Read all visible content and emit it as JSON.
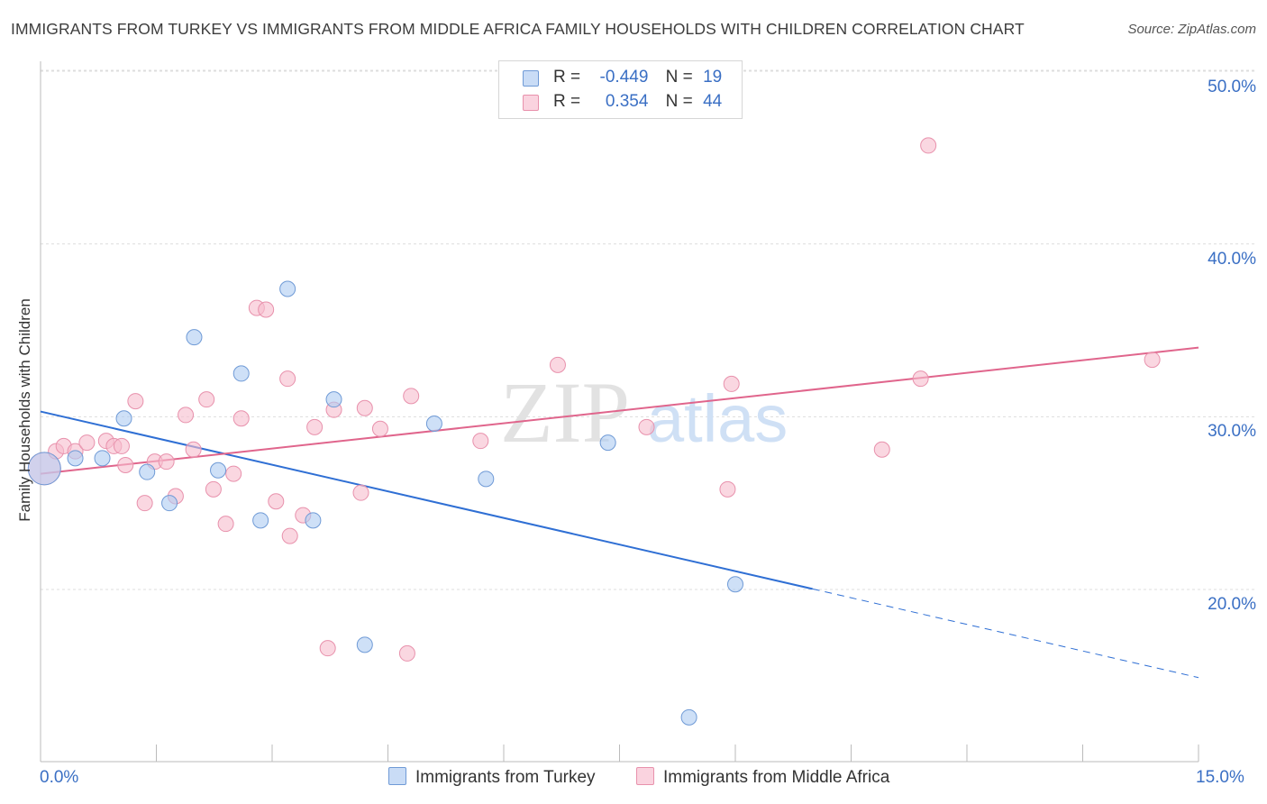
{
  "title": "IMMIGRANTS FROM TURKEY VS IMMIGRANTS FROM MIDDLE AFRICA FAMILY HOUSEHOLDS WITH CHILDREN CORRELATION CHART",
  "source": "Source: ZipAtlas.com",
  "watermark": {
    "zip": "ZIP",
    "atlas": "atlas"
  },
  "legend": {
    "rows": [
      {
        "r_label": "R =",
        "r_value": "-0.449",
        "n_label": "N =",
        "n_value": "19",
        "color": "#aecbf2"
      },
      {
        "r_label": "R =",
        "r_value": "0.354",
        "n_label": "N =",
        "n_value": "44",
        "color": "#f7bccd"
      }
    ]
  },
  "bottom_legend": {
    "series1": "Immigrants from Turkey",
    "series2": "Immigrants from Middle Africa"
  },
  "colors": {
    "blue_fill": "#aecbf2",
    "blue_stroke": "#6f9ad6",
    "blue_line": "#2f6fd4",
    "pink_fill": "#f7bccd",
    "pink_stroke": "#e891ac",
    "pink_line": "#e0658c",
    "tick_text": "#3a6fc4"
  },
  "chart_data": {
    "type": "scatter",
    "title": "IMMIGRANTS FROM TURKEY VS IMMIGRANTS FROM MIDDLE AFRICA FAMILY HOUSEHOLDS WITH CHILDREN CORRELATION CHART",
    "xlabel": "",
    "ylabel": "Family Households with Children",
    "xlim": [
      0,
      15
    ],
    "ylim": [
      11,
      51
    ],
    "x_tick_labels": [
      "0.0%",
      "15.0%"
    ],
    "y_ticks": [
      20,
      30,
      40,
      50
    ],
    "y_tick_labels": [
      "20.0%",
      "30.0%",
      "40.0%",
      "50.0%"
    ],
    "grid": true,
    "legend_position": "top-center",
    "series": [
      {
        "name": "Immigrants from Turkey",
        "r": -0.449,
        "n": 19,
        "points": [
          [
            0.05,
            27.0
          ],
          [
            0.45,
            27.6
          ],
          [
            0.8,
            27.6
          ],
          [
            1.08,
            29.9
          ],
          [
            1.38,
            26.8
          ],
          [
            1.67,
            25.0
          ],
          [
            1.99,
            34.6
          ],
          [
            2.3,
            26.9
          ],
          [
            2.6,
            32.5
          ],
          [
            2.85,
            24.0
          ],
          [
            3.2,
            37.4
          ],
          [
            3.53,
            24.0
          ],
          [
            3.8,
            31.0
          ],
          [
            4.2,
            16.8
          ],
          [
            5.1,
            29.6
          ],
          [
            5.77,
            26.4
          ],
          [
            7.35,
            28.5
          ],
          [
            8.4,
            12.6
          ],
          [
            9.0,
            20.3
          ]
        ],
        "trend": {
          "x0": 0,
          "y0": 30.3,
          "x_solid_end": 10.0,
          "x1": 15.0,
          "y1": 14.9
        }
      },
      {
        "name": "Immigrants from Middle Africa",
        "r": 0.354,
        "n": 44,
        "points": [
          [
            0.05,
            27.0
          ],
          [
            0.2,
            28.0
          ],
          [
            0.3,
            28.3
          ],
          [
            0.45,
            28.0
          ],
          [
            0.6,
            28.5
          ],
          [
            0.85,
            28.6
          ],
          [
            0.95,
            28.3
          ],
          [
            1.05,
            28.3
          ],
          [
            1.1,
            27.2
          ],
          [
            1.23,
            30.9
          ],
          [
            1.35,
            25.0
          ],
          [
            1.48,
            27.4
          ],
          [
            1.63,
            27.4
          ],
          [
            1.75,
            25.4
          ],
          [
            1.88,
            30.1
          ],
          [
            1.98,
            28.1
          ],
          [
            2.15,
            31.0
          ],
          [
            2.24,
            25.8
          ],
          [
            2.4,
            23.8
          ],
          [
            2.5,
            26.7
          ],
          [
            2.6,
            29.9
          ],
          [
            2.8,
            36.3
          ],
          [
            2.92,
            36.2
          ],
          [
            3.05,
            25.1
          ],
          [
            3.2,
            32.2
          ],
          [
            3.23,
            23.1
          ],
          [
            3.4,
            24.3
          ],
          [
            3.55,
            29.4
          ],
          [
            3.72,
            16.6
          ],
          [
            3.8,
            30.4
          ],
          [
            4.15,
            25.6
          ],
          [
            4.2,
            30.5
          ],
          [
            4.4,
            29.3
          ],
          [
            4.75,
            16.3
          ],
          [
            4.8,
            31.2
          ],
          [
            5.7,
            28.6
          ],
          [
            6.7,
            33.0
          ],
          [
            7.85,
            29.4
          ],
          [
            8.9,
            25.8
          ],
          [
            8.95,
            31.9
          ],
          [
            10.9,
            28.1
          ],
          [
            11.4,
            32.2
          ],
          [
            11.5,
            45.7
          ],
          [
            14.4,
            33.3
          ]
        ],
        "trend": {
          "x0": 0,
          "y0": 26.7,
          "x1": 15.0,
          "y1": 34.0
        }
      }
    ]
  }
}
